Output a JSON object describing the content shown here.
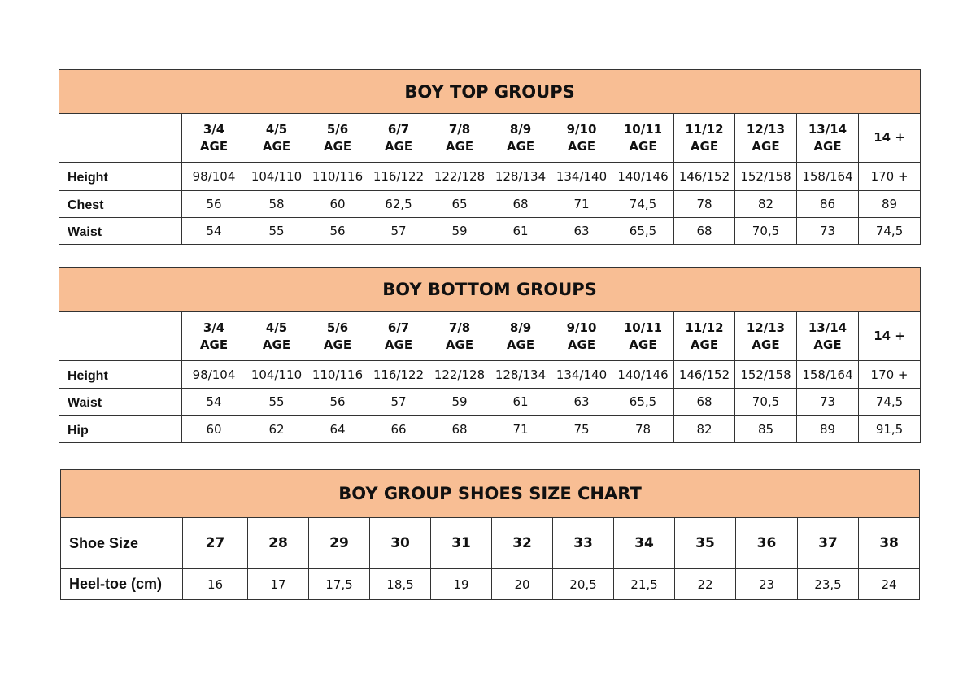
{
  "tables": [
    {
      "title": "BOY TOP GROUPS",
      "headers": [
        "",
        "3/4\nAGE",
        "4/5\nAGE",
        "5/6\nAGE",
        "6/7\nAGE",
        "7/8\nAGE",
        "8/9\nAGE",
        "9/10\nAGE",
        "10/11\nAGE",
        "11/12\nAGE",
        "12/13\nAGE",
        "13/14\nAGE",
        "14 +"
      ],
      "rows": [
        {
          "label": "Height",
          "values": [
            "98/104",
            "104/110",
            "110/116",
            "116/122",
            "122/128",
            "128/134",
            "134/140",
            "140/146",
            "146/152",
            "152/158",
            "158/164",
            "170 +"
          ]
        },
        {
          "label": "Chest",
          "values": [
            "56",
            "58",
            "60",
            "62,5",
            "65",
            "68",
            "71",
            "74,5",
            "78",
            "82",
            "86",
            "89"
          ]
        },
        {
          "label": "Waist",
          "values": [
            "54",
            "55",
            "56",
            "57",
            "59",
            "61",
            "63",
            "65,5",
            "68",
            "70,5",
            "73",
            "74,5"
          ]
        }
      ]
    },
    {
      "title": "BOY BOTTOM GROUPS",
      "headers": [
        "",
        "3/4\nAGE",
        "4/5\nAGE",
        "5/6\nAGE",
        "6/7\nAGE",
        "7/8\nAGE",
        "8/9\nAGE",
        "9/10\nAGE",
        "10/11\nAGE",
        "11/12\nAGE",
        "12/13\nAGE",
        "13/14\nAGE",
        "14 +"
      ],
      "rows": [
        {
          "label": "Height",
          "values": [
            "98/104",
            "104/110",
            "110/116",
            "116/122",
            "122/128",
            "128/134",
            "134/140",
            "140/146",
            "146/152",
            "152/158",
            "158/164",
            "170 +"
          ]
        },
        {
          "label": "Waist",
          "values": [
            "54",
            "55",
            "56",
            "57",
            "59",
            "61",
            "63",
            "65,5",
            "68",
            "70,5",
            "73",
            "74,5"
          ]
        },
        {
          "label": "Hip",
          "values": [
            "60",
            "62",
            "64",
            "66",
            "68",
            "71",
            "75",
            "78",
            "82",
            "85",
            "89",
            "91,5"
          ]
        }
      ]
    },
    {
      "title": "BOY GROUP SHOES SIZE CHART",
      "headers": [],
      "rows": [
        {
          "label": "Shoe Size",
          "values": [
            "27",
            "28",
            "29",
            "30",
            "31",
            "32",
            "33",
            "34",
            "35",
            "36",
            "37",
            "38"
          ]
        },
        {
          "label": "Heel-toe (cm)",
          "values": [
            "16",
            "17",
            "17,5",
            "18,5",
            "19",
            "20",
            "20,5",
            "21,5",
            "22",
            "23",
            "23,5",
            "24"
          ]
        }
      ]
    }
  ],
  "colors": {
    "header_fill": "#F8BE94",
    "border": "#333333"
  }
}
